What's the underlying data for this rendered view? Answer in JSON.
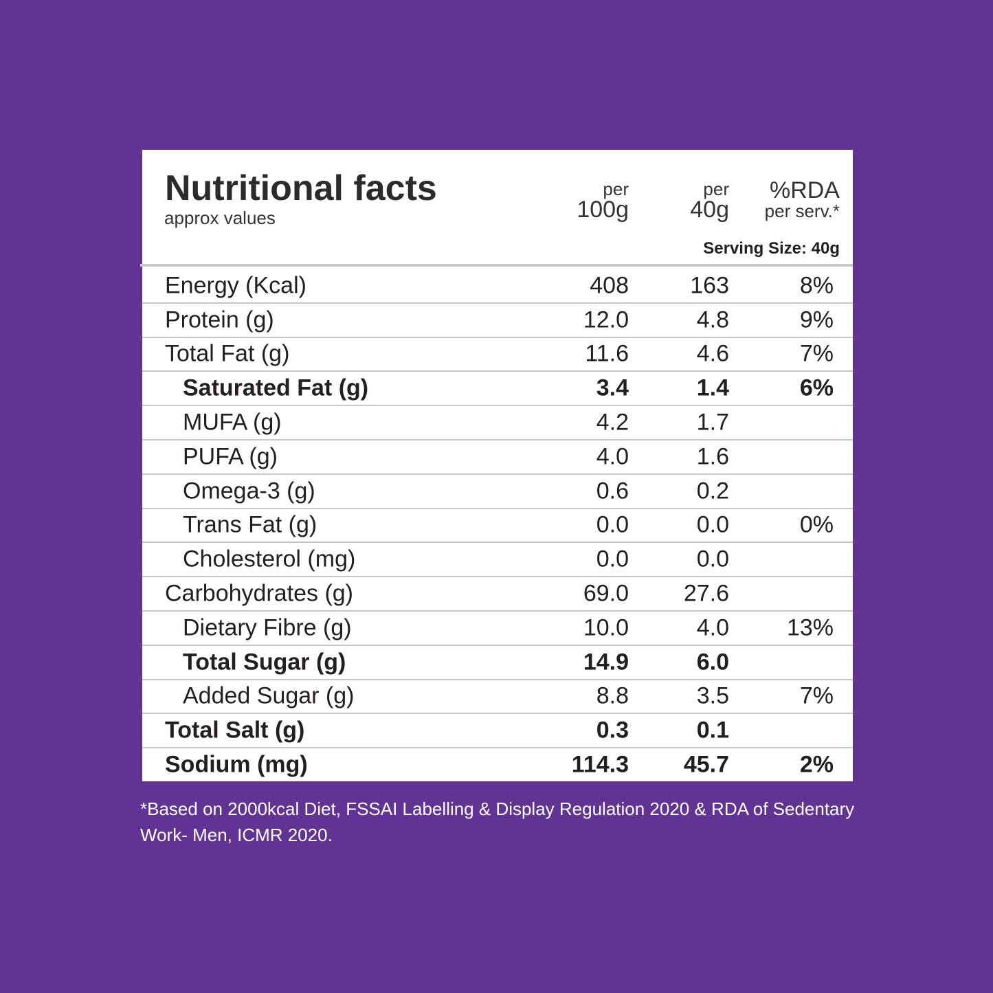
{
  "header": {
    "title": "Nutritional facts",
    "subtitle": "approx values",
    "columns": [
      {
        "top": "per",
        "bottom": "100g"
      },
      {
        "top": "per",
        "bottom": "40g"
      },
      {
        "top": "%RDA",
        "bottom": "per serv.*"
      }
    ],
    "serving_size": "Serving Size: 40g"
  },
  "table": {
    "rows": [
      {
        "label": "Energy (Kcal)",
        "per_100g": "408",
        "per_40g": "163",
        "rda": "8%"
      },
      {
        "label": "Protein (g)",
        "per_100g": "12.0",
        "per_40g": "4.8",
        "rda": "9%"
      },
      {
        "label": "Total Fat (g)",
        "per_100g": "11.6",
        "per_40g": "4.6",
        "rda": "7%"
      },
      {
        "label": "Saturated Fat (g)",
        "per_100g": "3.4",
        "per_40g": "1.4",
        "rda": "6%"
      },
      {
        "label": "MUFA (g)",
        "per_100g": "4.2",
        "per_40g": "1.7"
      },
      {
        "label": "PUFA (g)",
        "per_100g": "4.0",
        "per_40g": "1.6"
      },
      {
        "label": "Omega-3 (g)",
        "per_100g": "0.6",
        "per_40g": "0.2"
      },
      {
        "label": "Trans Fat (g)",
        "per_100g": "0.0",
        "per_40g": "0.0",
        "rda": "0%"
      },
      {
        "label": "Cholesterol (mg)",
        "per_100g": "0.0",
        "per_40g": "0.0"
      },
      {
        "label": "Carbohydrates (g)",
        "per_100g": "69.0",
        "per_40g": "27.6"
      },
      {
        "label": "Dietary Fibre (g)",
        "per_100g": "10.0",
        "per_40g": "4.0",
        "rda": "13%"
      },
      {
        "label": "Total Sugar (g)",
        "per_100g": "14.9",
        "per_40g": "6.0"
      },
      {
        "label": "Added Sugar (g)",
        "per_100g": "8.8",
        "per_40g": "3.5",
        "rda": "7%"
      },
      {
        "label": "Total Salt (g)",
        "per_100g": "0.3",
        "per_40g": "0.1"
      },
      {
        "label": "Sodium (mg)",
        "per_100g": "114.3",
        "per_40g": "45.7",
        "rda": "2%"
      }
    ]
  },
  "footnote": "*Based on 2000kcal Diet, FSSAI Labelling & Display Regulation 2020 & RDA of Sedentary Work- Men, ICMR 2020."
}
